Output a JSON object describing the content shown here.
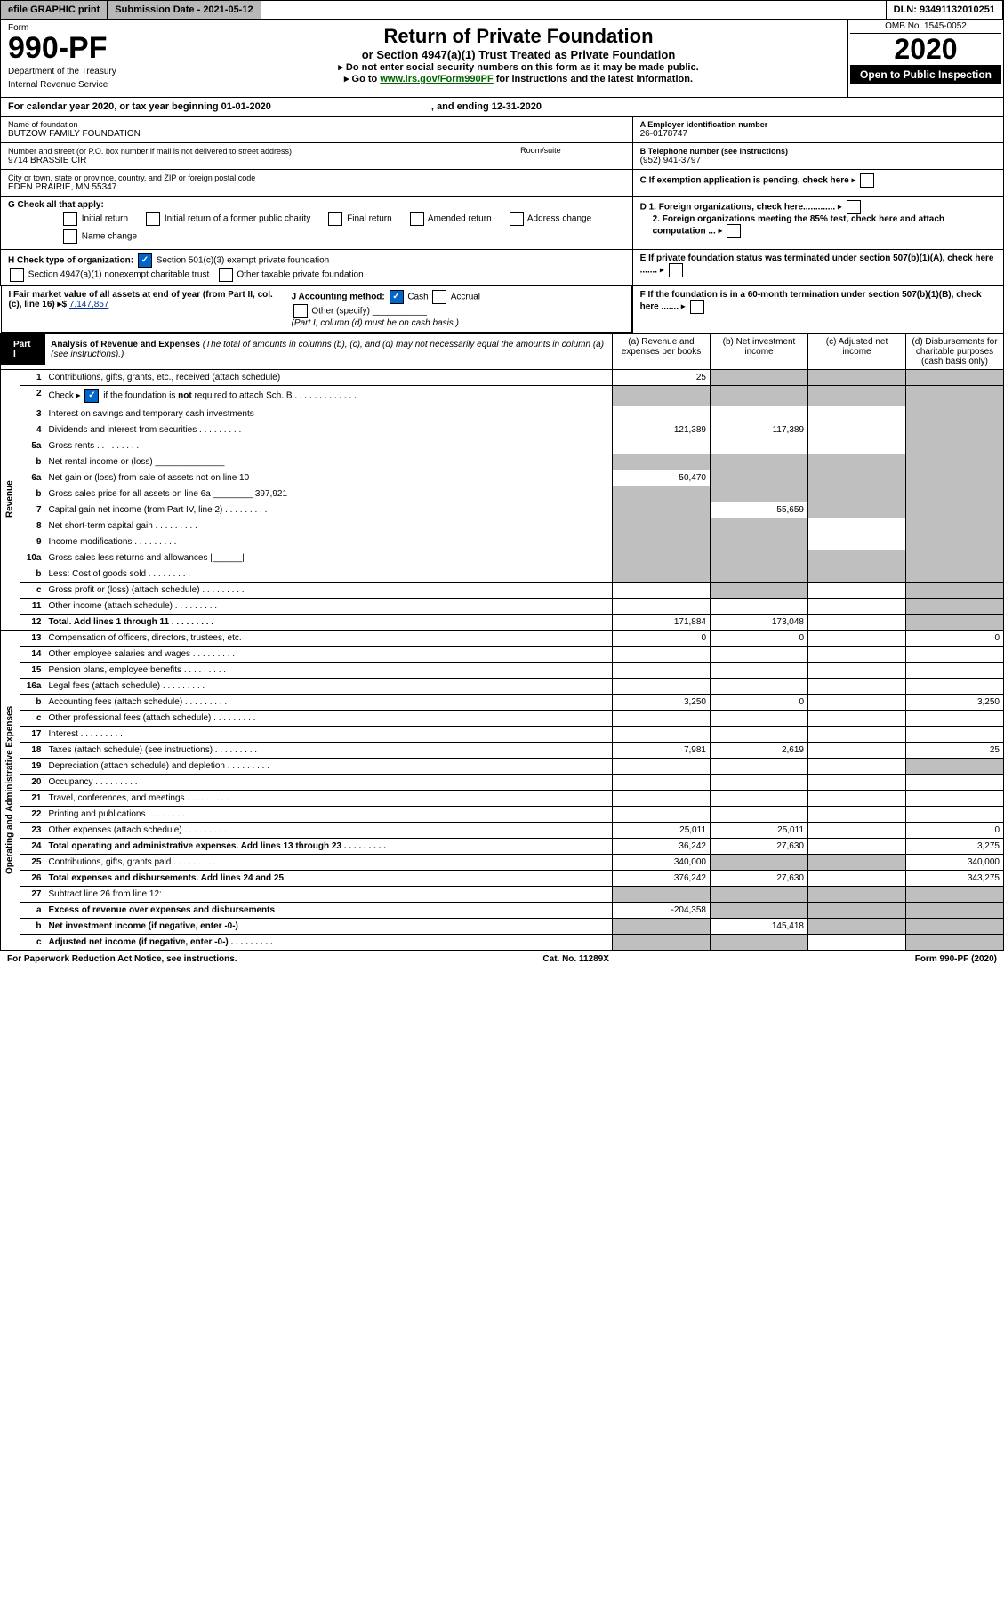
{
  "topbar": {
    "efile": "efile GRAPHIC print",
    "subdate": "Submission Date - 2021-05-12",
    "dln": "DLN: 93491132010251"
  },
  "hdr": {
    "form": "Form",
    "no": "990-PF",
    "dept": "Department of the Treasury",
    "irs": "Internal Revenue Service",
    "title": "Return of Private Foundation",
    "sub": "or Section 4947(a)(1) Trust Treated as Private Foundation",
    "note1": "▸ Do not enter social security numbers on this form as it may be made public.",
    "note2": "▸ Go to ",
    "link": "www.irs.gov/Form990PF",
    "note2b": " for instructions and the latest information.",
    "omb": "OMB No. 1545-0052",
    "yr": "2020",
    "open": "Open to Public Inspection"
  },
  "calyr": {
    "a": "For calendar year 2020, or tax year beginning 01-01-2020",
    "b": ", and ending 12-31-2020"
  },
  "info": {
    "name_lbl": "Name of foundation",
    "name": "BUTZOW FAMILY FOUNDATION",
    "ein_lbl": "A Employer identification number",
    "ein": "26-0178747",
    "addr_lbl": "Number and street (or P.O. box number if mail is not delivered to street address)",
    "addr": "9714 BRASSIE CIR",
    "room_lbl": "Room/suite",
    "tel_lbl": "B Telephone number (see instructions)",
    "tel": "(952) 941-3797",
    "city_lbl": "City or town, state or province, country, and ZIP or foreign postal code",
    "city": "EDEN PRAIRIE, MN  55347",
    "c": "C If exemption application is pending, check here",
    "g": "G Check all that apply:",
    "g1": "Initial return",
    "g2": "Initial return of a former public charity",
    "g3": "Final return",
    "g4": "Amended return",
    "g5": "Address change",
    "g6": "Name change",
    "d1": "D 1. Foreign organizations, check here.............",
    "d2": "2. Foreign organizations meeting the 85% test, check here and attach computation ...",
    "h": "H Check type of organization:",
    "h1": "Section 501(c)(3) exempt private foundation",
    "h2": "Section 4947(a)(1) nonexempt charitable trust",
    "h3": "Other taxable private foundation",
    "e": "E If private foundation status was terminated under section 507(b)(1)(A), check here .......",
    "i": "I Fair market value of all assets at end of year (from Part II, col. (c), line 16) ▸$",
    "i_val": "7,147,857",
    "j": "J Accounting method:",
    "j1": "Cash",
    "j2": "Accrual",
    "j3": "Other (specify)",
    "j_note": "(Part I, column (d) must be on cash basis.)",
    "f": "F If the foundation is in a 60-month termination under section 507(b)(1)(B), check here ......."
  },
  "part1": {
    "lbl": "Part I",
    "title": "Analysis of Revenue and Expenses",
    "note": "(The total of amounts in columns (b), (c), and (d) may not necessarily equal the amounts in column (a) (see instructions).)",
    "ca": "(a) Revenue and expenses per books",
    "cb": "(b) Net investment income",
    "cc": "(c) Adjusted net income",
    "cd": "(d) Disbursements for charitable purposes (cash basis only)"
  },
  "rot1": "Revenue",
  "rot2": "Operating and Administrative Expenses",
  "rows": [
    {
      "n": "1",
      "d": "Contributions, gifts, grants, etc., received (attach schedule)",
      "a": "25",
      "b": "shade",
      "c": "shade",
      "dv": "shade"
    },
    {
      "n": "2",
      "d": "Check ▸ ☑ if the foundation is not required to attach Sch. B",
      "dots": 1,
      "a": "shade",
      "b": "shade",
      "c": "shade",
      "dv": "shade",
      "bold_not": 1
    },
    {
      "n": "3",
      "d": "Interest on savings and temporary cash investments",
      "a": "",
      "b": "",
      "c": "",
      "dv": "shade"
    },
    {
      "n": "4",
      "d": "Dividends and interest from securities",
      "dots": 1,
      "a": "121,389",
      "b": "117,389",
      "c": "",
      "dv": "shade"
    },
    {
      "n": "5a",
      "d": "Gross rents",
      "dots": 1,
      "a": "",
      "b": "",
      "c": "",
      "dv": "shade"
    },
    {
      "n": "b",
      "d": "Net rental income or (loss)  ______________",
      "a": "shade",
      "b": "shade",
      "c": "shade",
      "dv": "shade"
    },
    {
      "n": "6a",
      "d": "Net gain or (loss) from sale of assets not on line 10",
      "a": "50,470",
      "b": "shade",
      "c": "shade",
      "dv": "shade"
    },
    {
      "n": "b",
      "d": "Gross sales price for all assets on line 6a ________ 397,921",
      "a": "shade",
      "b": "shade",
      "c": "shade",
      "dv": "shade"
    },
    {
      "n": "7",
      "d": "Capital gain net income (from Part IV, line 2)",
      "dots": 1,
      "a": "shade",
      "b": "55,659",
      "c": "shade",
      "dv": "shade"
    },
    {
      "n": "8",
      "d": "Net short-term capital gain",
      "dots": 1,
      "a": "shade",
      "b": "shade",
      "c": "",
      "dv": "shade"
    },
    {
      "n": "9",
      "d": "Income modifications",
      "dots": 1,
      "a": "shade",
      "b": "shade",
      "c": "",
      "dv": "shade"
    },
    {
      "n": "10a",
      "d": "Gross sales less returns and allowances  |______|",
      "a": "shade",
      "b": "shade",
      "c": "shade",
      "dv": "shade"
    },
    {
      "n": "b",
      "d": "Less: Cost of goods sold",
      "dots": 1,
      "a": "shade",
      "b": "shade",
      "c": "shade",
      "dv": "shade"
    },
    {
      "n": "c",
      "d": "Gross profit or (loss) (attach schedule)",
      "dots": 1,
      "a": "",
      "b": "shade",
      "c": "",
      "dv": "shade"
    },
    {
      "n": "11",
      "d": "Other income (attach schedule)",
      "dots": 1,
      "a": "",
      "b": "",
      "c": "",
      "dv": "shade"
    },
    {
      "n": "12",
      "d": "Total. Add lines 1 through 11",
      "dots": 1,
      "bold": 1,
      "a": "171,884",
      "b": "173,048",
      "c": "",
      "dv": "shade"
    },
    {
      "n": "13",
      "d": "Compensation of officers, directors, trustees, etc.",
      "a": "0",
      "b": "0",
      "c": "",
      "dv": "0"
    },
    {
      "n": "14",
      "d": "Other employee salaries and wages",
      "dots": 1,
      "a": "",
      "b": "",
      "c": "",
      "dv": ""
    },
    {
      "n": "15",
      "d": "Pension plans, employee benefits",
      "dots": 1,
      "a": "",
      "b": "",
      "c": "",
      "dv": ""
    },
    {
      "n": "16a",
      "d": "Legal fees (attach schedule)",
      "dots": 1,
      "a": "",
      "b": "",
      "c": "",
      "dv": ""
    },
    {
      "n": "b",
      "d": "Accounting fees (attach schedule)",
      "dots": 1,
      "a": "3,250",
      "b": "0",
      "c": "",
      "dv": "3,250"
    },
    {
      "n": "c",
      "d": "Other professional fees (attach schedule)",
      "dots": 1,
      "a": "",
      "b": "",
      "c": "",
      "dv": ""
    },
    {
      "n": "17",
      "d": "Interest",
      "dots": 1,
      "a": "",
      "b": "",
      "c": "",
      "dv": ""
    },
    {
      "n": "18",
      "d": "Taxes (attach schedule) (see instructions)",
      "dots": 1,
      "a": "7,981",
      "b": "2,619",
      "c": "",
      "dv": "25"
    },
    {
      "n": "19",
      "d": "Depreciation (attach schedule) and depletion",
      "dots": 1,
      "a": "",
      "b": "",
      "c": "",
      "dv": "shade"
    },
    {
      "n": "20",
      "d": "Occupancy",
      "dots": 1,
      "a": "",
      "b": "",
      "c": "",
      "dv": ""
    },
    {
      "n": "21",
      "d": "Travel, conferences, and meetings",
      "dots": 1,
      "a": "",
      "b": "",
      "c": "",
      "dv": ""
    },
    {
      "n": "22",
      "d": "Printing and publications",
      "dots": 1,
      "a": "",
      "b": "",
      "c": "",
      "dv": ""
    },
    {
      "n": "23",
      "d": "Other expenses (attach schedule)",
      "dots": 1,
      "a": "25,011",
      "b": "25,011",
      "c": "",
      "dv": "0"
    },
    {
      "n": "24",
      "d": "Total operating and administrative expenses. Add lines 13 through 23",
      "dots": 1,
      "bold": 1,
      "a": "36,242",
      "b": "27,630",
      "c": "",
      "dv": "3,275"
    },
    {
      "n": "25",
      "d": "Contributions, gifts, grants paid",
      "dots": 1,
      "a": "340,000",
      "b": "shade",
      "c": "shade",
      "dv": "340,000"
    },
    {
      "n": "26",
      "d": "Total expenses and disbursements. Add lines 24 and 25",
      "bold": 1,
      "a": "376,242",
      "b": "27,630",
      "c": "",
      "dv": "343,275"
    },
    {
      "n": "27",
      "d": "Subtract line 26 from line 12:",
      "a": "shade",
      "b": "shade",
      "c": "shade",
      "dv": "shade"
    },
    {
      "n": "a",
      "d": "Excess of revenue over expenses and disbursements",
      "bold": 1,
      "a": "-204,358",
      "b": "shade",
      "c": "shade",
      "dv": "shade"
    },
    {
      "n": "b",
      "d": "Net investment income (if negative, enter -0-)",
      "bold": 1,
      "a": "shade",
      "b": "145,418",
      "c": "shade",
      "dv": "shade"
    },
    {
      "n": "c",
      "d": "Adjusted net income (if negative, enter -0-)",
      "dots": 1,
      "bold": 1,
      "a": "shade",
      "b": "shade",
      "c": "",
      "dv": "shade"
    }
  ],
  "footer": {
    "a": "For Paperwork Reduction Act Notice, see instructions.",
    "b": "Cat. No. 11289X",
    "c": "Form 990-PF (2020)"
  }
}
